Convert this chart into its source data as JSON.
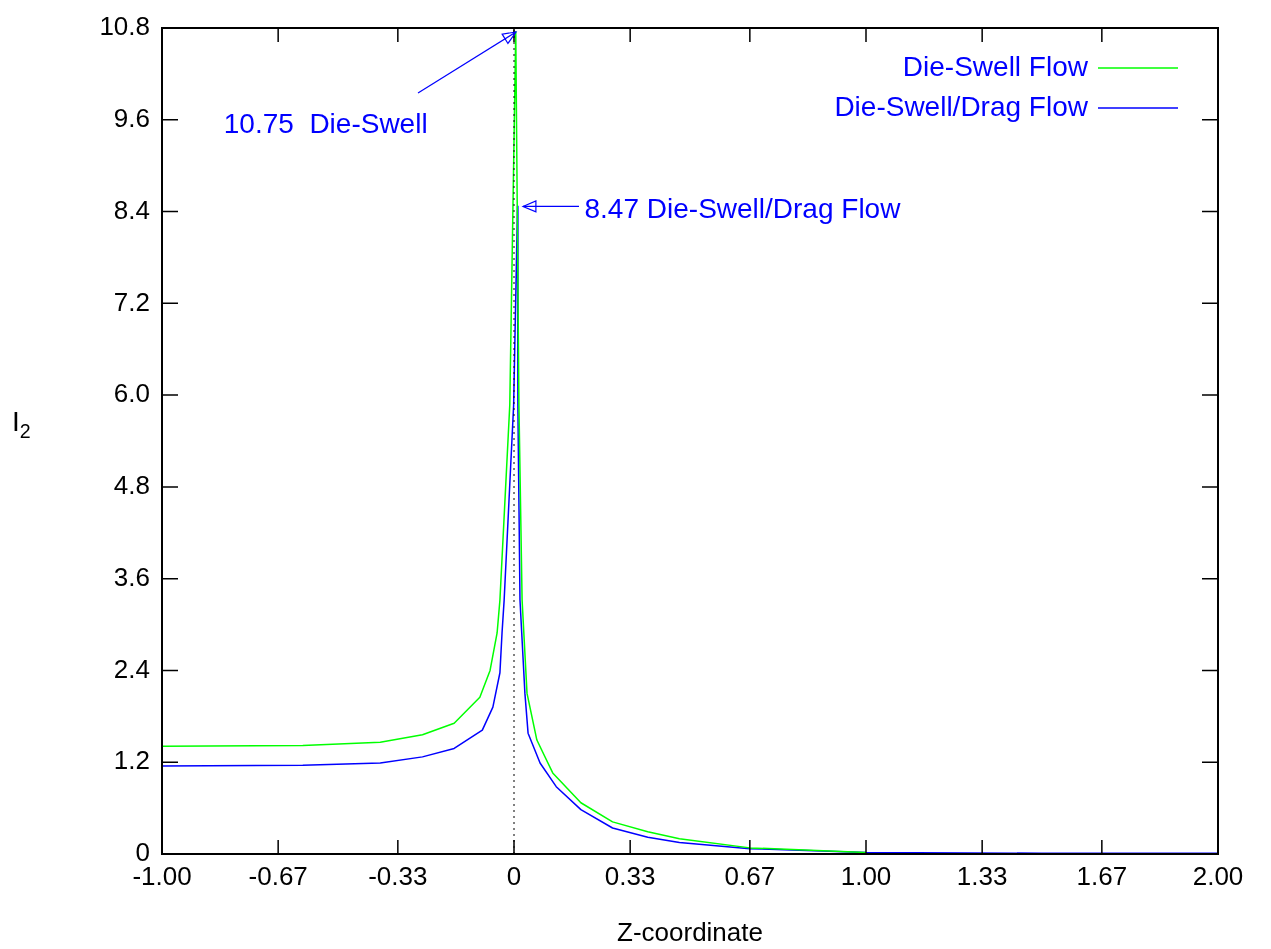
{
  "chart_data": {
    "type": "line",
    "xlabel": "Z-coordinate",
    "ylabel": "I$_{2}$",
    "xlim": [
      -1,
      2
    ],
    "ylim": [
      0,
      10.8
    ],
    "xticks": [
      {
        "value": -1,
        "label": "-1.00"
      },
      {
        "value": -0.67,
        "label": "-0.67"
      },
      {
        "value": -0.33,
        "label": "-0.33"
      },
      0,
      {
        "value": 0.33,
        "label": "0.33"
      },
      {
        "value": 0.67,
        "label": "0.67"
      },
      {
        "value": 1,
        "label": "1.00"
      },
      {
        "value": 1.33,
        "label": "1.33"
      },
      {
        "value": 1.67,
        "label": "1.67"
      },
      {
        "value": 2,
        "label": "2.00"
      }
    ],
    "yticks": [
      0,
      1.2,
      2.4,
      3.6,
      4.8,
      {
        "value": 6,
        "label": "6.0"
      },
      7.2,
      8.4,
      9.6,
      10.8
    ],
    "grid": false,
    "legend": "top right",
    "marker": "none",
    "line_style": "solid",
    "series": [
      {
        "name": "Die-Swell Flow",
        "color": "#00ff00",
        "x": [
          -1,
          -0.6,
          -0.38,
          -0.26,
          -0.17,
          -0.097,
          -0.068,
          -0.048,
          -0.04,
          -0.012,
          0.005,
          0.014,
          0.023,
          0.037,
          0.065,
          0.11,
          0.19,
          0.28,
          0.38,
          0.47,
          0.67,
          1.0
        ],
        "values": [
          1.41,
          1.42,
          1.46,
          1.56,
          1.71,
          2.05,
          2.4,
          2.89,
          3.32,
          5.87,
          10.75,
          5.87,
          3.32,
          2.1,
          1.49,
          1.06,
          0.67,
          0.42,
          0.29,
          0.2,
          0.08,
          0.02
        ]
      },
      {
        "name": "Die-Swell/Drag Flow",
        "color": "#0000ff",
        "x": [
          -1,
          -0.6,
          -0.38,
          -0.26,
          -0.17,
          -0.09,
          -0.06,
          -0.04,
          -0.034,
          -0.028,
          -0.001,
          0.01,
          0.011,
          0.017,
          0.031,
          0.04,
          0.074,
          0.12,
          0.19,
          0.28,
          0.38,
          0.47,
          0.67,
          1.0,
          1.5,
          2.0
        ],
        "values": [
          1.15,
          1.16,
          1.19,
          1.27,
          1.38,
          1.62,
          1.92,
          2.37,
          2.89,
          3.32,
          5.87,
          8.47,
          5.87,
          3.32,
          2.1,
          1.58,
          1.19,
          0.88,
          0.58,
          0.34,
          0.22,
          0.15,
          0.07,
          0.02,
          0.01,
          0.01
        ]
      }
    ],
    "ref_lines": [
      {
        "axis": "x",
        "value": 0,
        "color": "#000000",
        "line_style": "dotted"
      }
    ],
    "annotations": [
      {
        "text": "10.75  Die-Swell",
        "x": 0.005,
        "y": 10.75
      },
      {
        "text": "8.47 Die-Swell/Drag Flow",
        "x": 0.01,
        "y": 8.47
      }
    ]
  }
}
